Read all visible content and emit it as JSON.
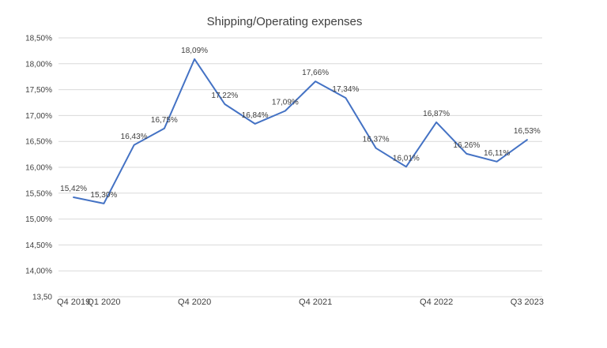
{
  "chart_data": {
    "type": "line",
    "title": "Shipping/Operating expenses",
    "xlabel": "",
    "ylabel": "",
    "categories": [
      "Q4 2019",
      "Q1 2020",
      "",
      "",
      "Q4 2020",
      "",
      "",
      "",
      "Q4 2021",
      "",
      "",
      "",
      "Q4 2022",
      "",
      "",
      "Q3 2023"
    ],
    "series": [
      {
        "color": "#4472c4",
        "values": [
          15.42,
          15.3,
          16.43,
          16.75,
          18.09,
          17.22,
          16.84,
          17.09,
          17.66,
          17.34,
          16.37,
          16.01,
          16.87,
          16.26,
          16.11,
          16.53
        ],
        "labels": [
          "15,42%",
          "15,30%",
          "16,43%",
          "16,75%",
          "18,09%",
          "17,22%",
          "16,84%",
          "17,09%",
          "17,66%",
          "17,34%",
          "16,37%",
          "16,01%",
          "16,87%",
          "16,26%",
          "16,11%",
          "16,53%"
        ]
      }
    ],
    "ylim": [
      13.5,
      18.5
    ],
    "yticks": [
      13.5,
      14.0,
      14.5,
      15.0,
      15.5,
      16.0,
      16.5,
      17.0,
      17.5,
      18.0,
      18.5
    ],
    "ytick_labels": [
      "13,50",
      "14,00%",
      "14,50%",
      "15,00%",
      "15,50%",
      "16,00%",
      "16,50%",
      "17,00%",
      "17,50%",
      "18,00%",
      "18,50%"
    ],
    "grid": true,
    "legend": "none"
  }
}
